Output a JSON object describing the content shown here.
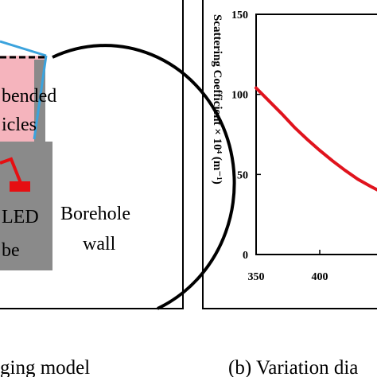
{
  "left_panel": {
    "suspended_label_line1": "bended",
    "suspended_label_line2": "icles",
    "led_label_line1": "LED",
    "led_label_line2": "be",
    "borehole_label_line1": "Borehole",
    "borehole_label_line2": "wall",
    "caption": "ging model"
  },
  "right_panel": {
    "caption": "(b) Variation dia",
    "ylabel": "Scattering Coefficient × 10⁴  (m⁻¹)"
  },
  "chart_data": {
    "type": "line",
    "xlabel": "",
    "ylabel": "Scattering Coefficient × 10⁴  (m⁻¹)",
    "xlim": [
      350,
      450
    ],
    "ylim": [
      0,
      150
    ],
    "x_ticks": [
      "350",
      "400"
    ],
    "y_ticks": [
      "0",
      "50",
      "100",
      "150"
    ],
    "series": [
      {
        "color": "#e0131d",
        "x": [
          350,
          360,
          370,
          380,
          390,
          400,
          410,
          420,
          430,
          440,
          450
        ],
        "y": [
          104,
          96,
          88,
          79.5,
          72,
          65,
          58.5,
          52.5,
          47,
          42.5,
          38.5
        ]
      }
    ]
  },
  "colors": {
    "chamber_fill": "#f5b4bd",
    "probe_gray": "#8a8a8a",
    "beam_line": "#3ba3dd",
    "led_red": "#e60f12",
    "curve_red": "#e0131d"
  }
}
